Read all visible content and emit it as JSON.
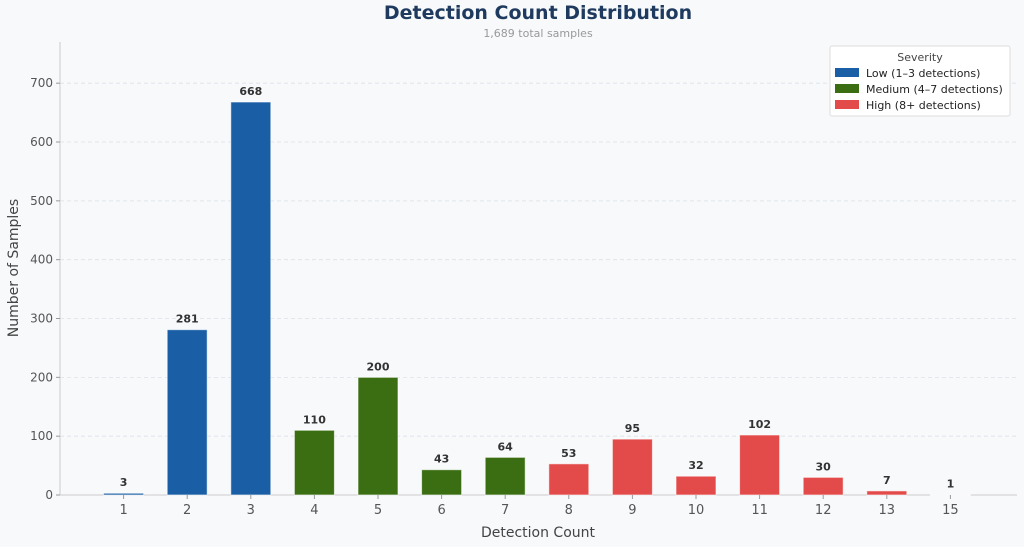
{
  "chart_data": {
    "type": "bar",
    "title": "Detection Count Distribution",
    "subtitle": "1,689 total samples",
    "xlabel": "Detection Count",
    "ylabel": "Number of Samples",
    "categories": [
      "1",
      "2",
      "3",
      "4",
      "5",
      "6",
      "7",
      "8",
      "9",
      "10",
      "11",
      "12",
      "13",
      "15"
    ],
    "values": [
      3,
      281,
      668,
      110,
      200,
      43,
      64,
      53,
      95,
      32,
      102,
      30,
      7,
      1
    ],
    "severity": [
      "low",
      "low",
      "low",
      "medium",
      "medium",
      "medium",
      "medium",
      "high",
      "high",
      "high",
      "high",
      "high",
      "high",
      "high"
    ],
    "ylim": [
      0,
      770
    ],
    "yticks": [
      0,
      100,
      200,
      300,
      400,
      500,
      600,
      700
    ],
    "grid": true,
    "legend": {
      "title": "Severity",
      "placement": "top-right",
      "entries": [
        {
          "key": "low",
          "label": "Low  (1–3 detections)",
          "color": "#1a5fa6"
        },
        {
          "key": "medium",
          "label": "Medium  (4–7 detections)",
          "color": "#3b6e12"
        },
        {
          "key": "high",
          "label": "High  (8+ detections)",
          "color": "#e34b4b"
        }
      ]
    }
  }
}
